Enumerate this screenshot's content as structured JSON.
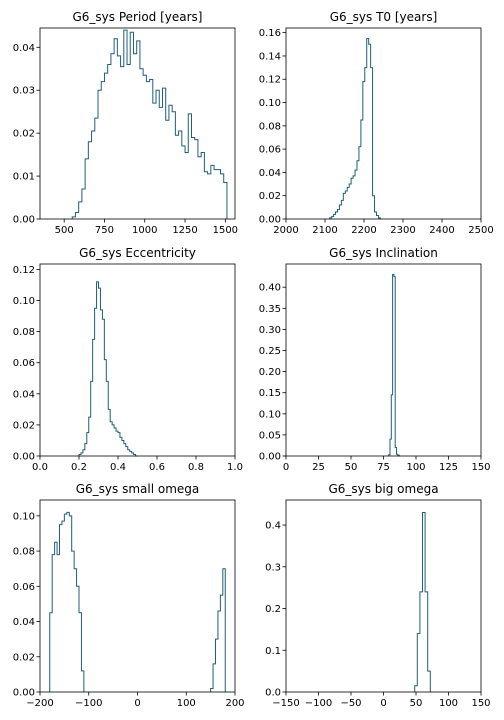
{
  "chart_data": [
    {
      "type": "histogram-step",
      "title": "G6_sys Period [years]",
      "xlim": [
        350,
        1560
      ],
      "ylim": [
        0,
        0.0445
      ],
      "xticks": [
        500,
        750,
        1000,
        1250,
        1500
      ],
      "yticks": [
        0.0,
        0.01,
        0.02,
        0.03,
        0.04
      ],
      "ytick_decimals": 2,
      "edges": [
        550,
        570,
        590,
        610,
        630,
        650,
        670,
        690,
        710,
        730,
        750,
        770,
        790,
        810,
        830,
        850,
        870,
        890,
        910,
        930,
        950,
        970,
        990,
        1010,
        1030,
        1050,
        1070,
        1090,
        1110,
        1130,
        1150,
        1170,
        1190,
        1210,
        1230,
        1250,
        1270,
        1290,
        1310,
        1330,
        1350,
        1370,
        1390,
        1410,
        1430,
        1450,
        1470,
        1490,
        1510
      ],
      "values": [
        0.0005,
        0.0015,
        0.004,
        0.007,
        0.014,
        0.018,
        0.0205,
        0.0235,
        0.03,
        0.032,
        0.034,
        0.036,
        0.0385,
        0.042,
        0.038,
        0.0355,
        0.044,
        0.036,
        0.0435,
        0.0385,
        0.0415,
        0.035,
        0.0335,
        0.032,
        0.0325,
        0.027,
        0.03,
        0.026,
        0.0305,
        0.023,
        0.0265,
        0.025,
        0.0195,
        0.0205,
        0.017,
        0.0155,
        0.0245,
        0.019,
        0.0185,
        0.0145,
        0.0155,
        0.011,
        0.0105,
        0.0125,
        0.0115,
        0.0115,
        0.0105,
        0.0085
      ]
    },
    {
      "type": "histogram-step",
      "title": "G6_sys T0 [years]",
      "xlim": [
        2000,
        2500
      ],
      "ylim": [
        0,
        0.164
      ],
      "xticks": [
        2000,
        2100,
        2200,
        2300,
        2400,
        2500
      ],
      "yticks": [
        0.0,
        0.02,
        0.04,
        0.06,
        0.08,
        0.1,
        0.12,
        0.14,
        0.16
      ],
      "ytick_decimals": 2,
      "edges": [
        2112,
        2117,
        2122,
        2127,
        2132,
        2137,
        2142,
        2147,
        2152,
        2157,
        2162,
        2167,
        2172,
        2177,
        2182,
        2187,
        2192,
        2197,
        2202,
        2207,
        2212,
        2217,
        2222,
        2227,
        2232,
        2237,
        2242
      ],
      "values": [
        0.001,
        0.002,
        0.004,
        0.006,
        0.008,
        0.012,
        0.016,
        0.022,
        0.024,
        0.027,
        0.03,
        0.035,
        0.037,
        0.042,
        0.05,
        0.062,
        0.085,
        0.118,
        0.13,
        0.155,
        0.15,
        0.13,
        0.02,
        0.006,
        0.003,
        0.001
      ]
    },
    {
      "type": "histogram-step",
      "title": "G6_sys Eccentricity",
      "xlim": [
        0,
        1
      ],
      "ylim": [
        0,
        0.1235
      ],
      "xticks": [
        0,
        0.2,
        0.4,
        0.6,
        0.8,
        1
      ],
      "yticks": [
        0,
        0.02,
        0.04,
        0.06,
        0.08,
        0.1,
        0.12
      ],
      "ytick_decimals": 2,
      "xtick_decimals": 1,
      "edges": [
        0.2,
        0.21,
        0.22,
        0.23,
        0.24,
        0.25,
        0.26,
        0.27,
        0.28,
        0.29,
        0.3,
        0.31,
        0.32,
        0.33,
        0.34,
        0.35,
        0.36,
        0.37,
        0.38,
        0.39,
        0.4,
        0.41,
        0.42,
        0.43,
        0.44,
        0.45,
        0.46,
        0.47,
        0.48,
        0.49,
        0.5
      ],
      "values": [
        0.001,
        0.002,
        0.004,
        0.008,
        0.015,
        0.025,
        0.048,
        0.075,
        0.095,
        0.112,
        0.108,
        0.094,
        0.088,
        0.062,
        0.048,
        0.03,
        0.022,
        0.02,
        0.018,
        0.016,
        0.015,
        0.012,
        0.01,
        0.008,
        0.006,
        0.004,
        0.003,
        0.002,
        0.001,
        0.0
      ]
    },
    {
      "type": "histogram-step",
      "title": "G6_sys Inclination",
      "xlim": [
        0,
        150
      ],
      "ylim": [
        0,
        0.455
      ],
      "xticks": [
        0,
        25,
        50,
        75,
        100,
        125,
        150
      ],
      "yticks": [
        0.0,
        0.05,
        0.1,
        0.15,
        0.2,
        0.25,
        0.3,
        0.35,
        0.4
      ],
      "ytick_decimals": 2,
      "edges": [
        79,
        80,
        81,
        82,
        83,
        84,
        85,
        86,
        87,
        88
      ],
      "values": [
        0.003,
        0.04,
        0.145,
        0.43,
        0.425,
        0.02,
        0.004,
        0.002,
        0.0
      ]
    },
    {
      "type": "histogram-step",
      "title": "G6_sys small omega",
      "xlim": [
        -200,
        200
      ],
      "ylim": [
        0,
        0.109
      ],
      "xticks": [
        -200,
        -100,
        0,
        100,
        200
      ],
      "yticks": [
        0.0,
        0.02,
        0.04,
        0.06,
        0.08,
        0.1
      ],
      "ytick_decimals": 2,
      "edges": [
        -180,
        -175,
        -170,
        -165,
        -160,
        -155,
        -150,
        -145,
        -140,
        -135,
        -130,
        -125,
        -120,
        -115,
        -110,
        150,
        155,
        160,
        165,
        170,
        175,
        180
      ],
      "values": [
        0.045,
        0.078,
        0.085,
        0.078,
        0.095,
        0.097,
        0.101,
        0.102,
        0.1,
        0.08,
        0.07,
        0.06,
        0.045,
        0.012,
        0.0,
        0.002,
        0.016,
        0.03,
        0.046,
        0.055,
        0.07
      ],
      "gap_after_index": 14
    },
    {
      "type": "histogram-step",
      "title": "G6_sys big omega",
      "xlim": [
        -150,
        150
      ],
      "ylim": [
        0,
        0.46
      ],
      "xticks": [
        -150,
        -100,
        -50,
        0,
        50,
        100,
        150
      ],
      "yticks": [
        0.0,
        0.1,
        0.2,
        0.3,
        0.4
      ],
      "ytick_decimals": 1,
      "edges": [
        48,
        52,
        56,
        60,
        64,
        68,
        72
      ],
      "values": [
        0.015,
        0.14,
        0.24,
        0.43,
        0.24,
        0.05
      ]
    }
  ]
}
